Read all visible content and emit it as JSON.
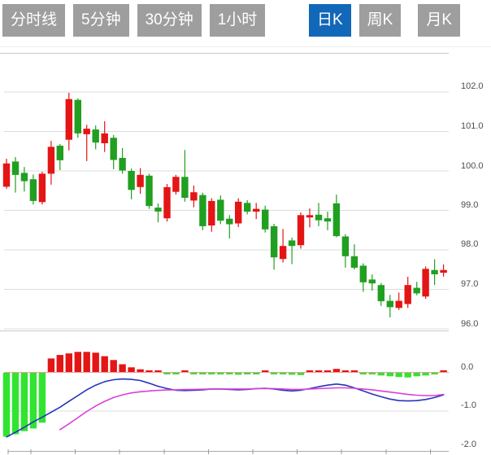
{
  "tabs": {
    "items": [
      {
        "label": "分时线",
        "active": false
      },
      {
        "label": "5分钟",
        "active": false
      },
      {
        "label": "30分钟",
        "active": false
      },
      {
        "label": "1小时",
        "active": false
      },
      {
        "label": "日K",
        "active": true
      },
      {
        "label": "周K",
        "active": false
      },
      {
        "label": "月K",
        "active": false
      }
    ]
  },
  "colors": {
    "up": "#e41515",
    "down": "#219f21",
    "hist_up": "#e41515",
    "hist_down": "#30e430",
    "dif_line": "#2733bb",
    "dea_line": "#d841d8",
    "zero_line": "#f09a9a",
    "grid": "#dcdcdc",
    "border": "#c8c8c8",
    "axis": "#aaaaaa",
    "tick": "#999999",
    "label": "#4d4d4d",
    "tab_bg": "#9e9e9e",
    "tab_active_bg": "#1268b8"
  },
  "chart_data": {
    "type": "candlestick",
    "subpanel": "macd",
    "grid": true,
    "price_axis": {
      "min": 96.0,
      "max": 102.0,
      "step": 1.0,
      "side": "right"
    },
    "macd_axis": {
      "min": -2.0,
      "max": 0.0,
      "step": 1.0,
      "side": "right"
    },
    "axis_labels": [
      "102.0",
      "101.0",
      "100.0",
      "99.0",
      "98.0",
      "97.0",
      "96.0",
      "0.0",
      "-1.0",
      "-2.0"
    ],
    "x_ticks": [
      10,
      38,
      92.6,
      147.2,
      201.8,
      256.4,
      311,
      365.6,
      420.2,
      474.8,
      529.4
    ],
    "candles_ohlc_note": "each candle is [open, high, low, close]; red = close>=open (CN convention)",
    "candles": [
      [
        99.6,
        100.31,
        99.55,
        100.19
      ],
      [
        100.24,
        100.35,
        99.45,
        99.9
      ],
      [
        99.95,
        100.1,
        99.48,
        99.74
      ],
      [
        99.79,
        99.91,
        99.15,
        99.24
      ],
      [
        99.21,
        99.98,
        99.15,
        99.93
      ],
      [
        99.93,
        100.76,
        99.65,
        100.61
      ],
      [
        100.64,
        100.68,
        100.02,
        100.27
      ],
      [
        100.79,
        101.98,
        100.52,
        101.82
      ],
      [
        101.8,
        101.84,
        100.84,
        100.95
      ],
      [
        100.93,
        101.17,
        100.25,
        101.07
      ],
      [
        101.05,
        101.15,
        100.55,
        100.72
      ],
      [
        100.7,
        101.26,
        100.48,
        100.95
      ],
      [
        100.84,
        100.91,
        100.04,
        100.28
      ],
      [
        100.33,
        100.58,
        99.93,
        100.01
      ],
      [
        100.0,
        100.06,
        99.28,
        99.52
      ],
      [
        99.59,
        100.07,
        99.42,
        99.9
      ],
      [
        99.88,
        99.93,
        99.04,
        99.11
      ],
      [
        99.07,
        99.18,
        98.7,
        98.97
      ],
      [
        98.8,
        99.67,
        98.72,
        99.59
      ],
      [
        99.47,
        99.9,
        99.4,
        99.85
      ],
      [
        99.85,
        100.53,
        99.22,
        99.32
      ],
      [
        99.25,
        99.63,
        99.08,
        99.46
      ],
      [
        99.39,
        99.45,
        98.5,
        98.6
      ],
      [
        98.62,
        99.31,
        98.46,
        99.24
      ],
      [
        99.27,
        99.38,
        98.65,
        98.74
      ],
      [
        98.79,
        98.88,
        98.29,
        98.65
      ],
      [
        98.67,
        99.31,
        98.58,
        99.22
      ],
      [
        99.19,
        99.26,
        98.9,
        98.97
      ],
      [
        98.97,
        99.19,
        98.78,
        99.04
      ],
      [
        99.02,
        99.12,
        98.44,
        98.52
      ],
      [
        98.6,
        98.66,
        97.5,
        97.81
      ],
      [
        97.77,
        98.53,
        97.68,
        98.1
      ],
      [
        98.24,
        98.31,
        97.64,
        98.1
      ],
      [
        98.12,
        98.95,
        98.03,
        98.88
      ],
      [
        98.82,
        99.05,
        98.57,
        98.88
      ],
      [
        98.89,
        99.19,
        98.6,
        98.75
      ],
      [
        98.8,
        98.97,
        98.5,
        98.72
      ],
      [
        99.18,
        99.4,
        98.32,
        98.35
      ],
      [
        98.34,
        98.4,
        97.55,
        97.84
      ],
      [
        97.84,
        98.14,
        97.5,
        97.55
      ],
      [
        97.6,
        97.66,
        96.94,
        97.18
      ],
      [
        97.25,
        97.38,
        96.97,
        97.15
      ],
      [
        97.11,
        97.16,
        96.58,
        96.7
      ],
      [
        96.71,
        96.86,
        96.29,
        96.55
      ],
      [
        96.53,
        96.92,
        96.48,
        96.71
      ],
      [
        96.63,
        97.32,
        96.53,
        97.11
      ],
      [
        97.04,
        97.19,
        96.85,
        96.9
      ],
      [
        96.82,
        97.58,
        96.76,
        97.52
      ],
      [
        97.49,
        97.76,
        97.11,
        97.38
      ],
      [
        97.42,
        97.63,
        97.32,
        97.49
      ]
    ],
    "macd": {
      "hist": [
        -1.66,
        -1.6,
        -1.52,
        -1.45,
        -1.3,
        0.36,
        0.45,
        0.49,
        0.53,
        0.53,
        0.51,
        0.42,
        0.32,
        0.21,
        0.13,
        0.08,
        0.05,
        0.01,
        -0.03,
        -0.03,
        0.01,
        -0.005,
        -0.01,
        -0.04,
        -0.04,
        -0.05,
        -0.06,
        -0.04,
        -0.01,
        0.01,
        -0.02,
        -0.05,
        -0.06,
        -0.07,
        0.02,
        0.04,
        0.05,
        0.09,
        0.05,
        0.02,
        -0.02,
        -0.04,
        -0.08,
        -0.1,
        -0.12,
        -0.13,
        -0.1,
        -0.08,
        -0.03,
        0.03
      ],
      "dif": [
        -1.67,
        -1.55,
        -1.42,
        -1.28,
        -1.16,
        -1.03,
        -0.9,
        -0.75,
        -0.6,
        -0.45,
        -0.33,
        -0.24,
        -0.19,
        -0.17,
        -0.18,
        -0.21,
        -0.28,
        -0.36,
        -0.42,
        -0.46,
        -0.47,
        -0.46,
        -0.45,
        -0.43,
        -0.43,
        -0.44,
        -0.45,
        -0.44,
        -0.42,
        -0.41,
        -0.43,
        -0.46,
        -0.48,
        -0.46,
        -0.42,
        -0.37,
        -0.33,
        -0.3,
        -0.33,
        -0.4,
        -0.48,
        -0.56,
        -0.63,
        -0.69,
        -0.73,
        -0.74,
        -0.73,
        -0.7,
        -0.65,
        -0.58
      ],
      "dea_start": 6,
      "dea": [
        -1.48,
        -1.33,
        -1.17,
        -1.01,
        -0.87,
        -0.75,
        -0.65,
        -0.58,
        -0.53,
        -0.5,
        -0.48,
        -0.465,
        -0.455,
        -0.45,
        -0.445,
        -0.44,
        -0.435,
        -0.43,
        -0.43,
        -0.43,
        -0.43,
        -0.43,
        -0.42,
        -0.42,
        -0.42,
        -0.43,
        -0.44,
        -0.44,
        -0.43,
        -0.42,
        -0.41,
        -0.4,
        -0.4,
        -0.41,
        -0.43,
        -0.45,
        -0.48,
        -0.51,
        -0.54,
        -0.57,
        -0.59,
        -0.6,
        -0.6,
        -0.57
      ]
    }
  }
}
